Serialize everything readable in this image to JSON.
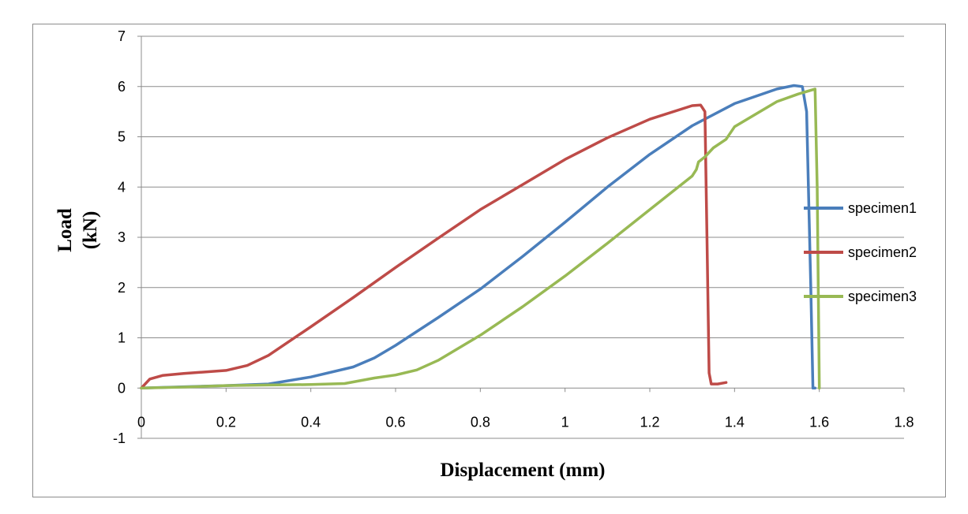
{
  "chart_data": {
    "type": "line",
    "title": "",
    "xlabel": "Displacement (mm)",
    "ylabel_line1": "Load",
    "ylabel_line2": "(kN)",
    "xlim": [
      0,
      1.8
    ],
    "ylim": [
      -1,
      7
    ],
    "x_ticks": [
      0,
      0.2,
      0.4,
      0.6,
      0.8,
      1,
      1.2,
      1.4,
      1.6,
      1.8
    ],
    "x_tick_labels": [
      "0",
      "0.2",
      "0.4",
      "0.6",
      "0.8",
      "1",
      "1.2",
      "1.4",
      "1.6",
      "1.8"
    ],
    "y_ticks": [
      -1,
      0,
      1,
      2,
      3,
      4,
      5,
      6,
      7
    ],
    "y_tick_labels": [
      "-1",
      "0",
      "1",
      "2",
      "3",
      "4",
      "5",
      "6",
      "7"
    ],
    "grid": "horizontal",
    "legend_position": "right",
    "series": [
      {
        "name": "specimen1",
        "color": "#4a7ebb",
        "points": [
          [
            0,
            0
          ],
          [
            0.2,
            0.05
          ],
          [
            0.3,
            0.08
          ],
          [
            0.4,
            0.22
          ],
          [
            0.5,
            0.42
          ],
          [
            0.55,
            0.6
          ],
          [
            0.6,
            0.85
          ],
          [
            0.7,
            1.4
          ],
          [
            0.8,
            1.97
          ],
          [
            0.9,
            2.62
          ],
          [
            1.0,
            3.3
          ],
          [
            1.1,
            4.0
          ],
          [
            1.2,
            4.65
          ],
          [
            1.3,
            5.22
          ],
          [
            1.4,
            5.66
          ],
          [
            1.5,
            5.95
          ],
          [
            1.54,
            6.02
          ],
          [
            1.56,
            6.0
          ],
          [
            1.57,
            5.5
          ],
          [
            1.58,
            2.0
          ],
          [
            1.585,
            0.0
          ],
          [
            1.59,
            0.0
          ]
        ]
      },
      {
        "name": "specimen2",
        "color": "#be4b48",
        "points": [
          [
            0,
            0
          ],
          [
            0.02,
            0.18
          ],
          [
            0.05,
            0.25
          ],
          [
            0.1,
            0.29
          ],
          [
            0.2,
            0.35
          ],
          [
            0.25,
            0.45
          ],
          [
            0.3,
            0.65
          ],
          [
            0.4,
            1.22
          ],
          [
            0.5,
            1.8
          ],
          [
            0.6,
            2.4
          ],
          [
            0.7,
            2.98
          ],
          [
            0.8,
            3.55
          ],
          [
            0.9,
            4.05
          ],
          [
            1.0,
            4.55
          ],
          [
            1.1,
            4.98
          ],
          [
            1.2,
            5.35
          ],
          [
            1.3,
            5.62
          ],
          [
            1.32,
            5.63
          ],
          [
            1.33,
            5.5
          ],
          [
            1.335,
            3.0
          ],
          [
            1.34,
            0.3
          ],
          [
            1.345,
            0.08
          ],
          [
            1.36,
            0.08
          ],
          [
            1.38,
            0.11
          ]
        ]
      },
      {
        "name": "specimen3",
        "color": "#98b954",
        "points": [
          [
            0,
            0
          ],
          [
            0.1,
            0.02
          ],
          [
            0.2,
            0.05
          ],
          [
            0.3,
            0.06
          ],
          [
            0.4,
            0.07
          ],
          [
            0.48,
            0.09
          ],
          [
            0.55,
            0.2
          ],
          [
            0.6,
            0.26
          ],
          [
            0.65,
            0.36
          ],
          [
            0.7,
            0.55
          ],
          [
            0.8,
            1.05
          ],
          [
            0.9,
            1.62
          ],
          [
            1.0,
            2.23
          ],
          [
            1.1,
            2.88
          ],
          [
            1.2,
            3.55
          ],
          [
            1.3,
            4.22
          ],
          [
            1.31,
            4.35
          ],
          [
            1.315,
            4.5
          ],
          [
            1.33,
            4.6
          ],
          [
            1.35,
            4.78
          ],
          [
            1.38,
            4.95
          ],
          [
            1.4,
            5.2
          ],
          [
            1.45,
            5.45
          ],
          [
            1.5,
            5.7
          ],
          [
            1.55,
            5.85
          ],
          [
            1.59,
            5.95
          ],
          [
            1.595,
            4.0
          ],
          [
            1.6,
            0.0
          ],
          [
            1.6,
            0.0
          ]
        ]
      }
    ]
  }
}
